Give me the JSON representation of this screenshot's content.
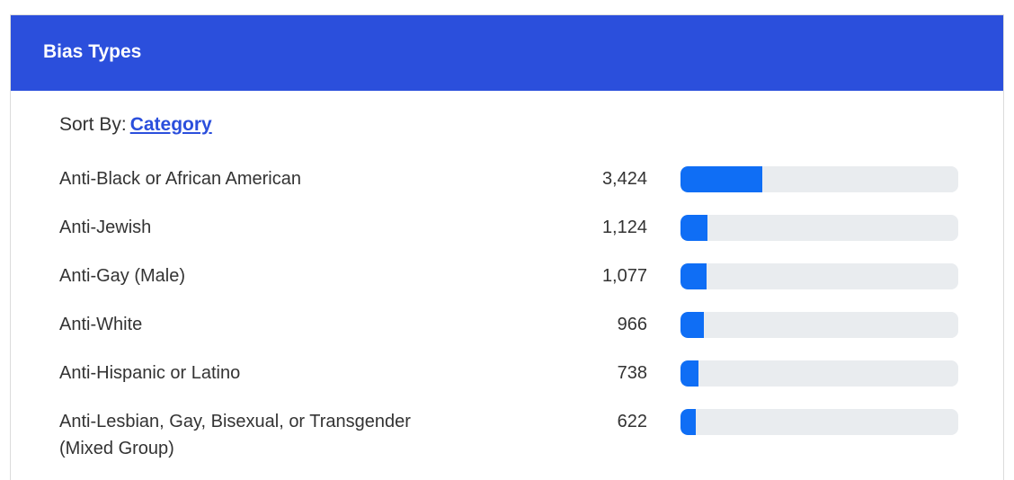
{
  "header": {
    "title": "Bias Types"
  },
  "sort": {
    "label": "Sort By:",
    "value": "Category"
  },
  "chart_data": {
    "type": "bar",
    "orientation": "horizontal",
    "categories": [
      "Anti-Black or African American",
      "Anti-Jewish",
      "Anti-Gay (Male)",
      "Anti-White",
      "Anti-Hispanic or Latino",
      "Anti-Lesbian, Gay, Bisexual, or Transgender (Mixed Group)"
    ],
    "values": [
      3424,
      1124,
      1077,
      966,
      738,
      622
    ],
    "value_labels": [
      "3,424",
      "1,124",
      "1,077",
      "966",
      "738",
      "622"
    ],
    "color": "#0f6ef5",
    "track_color": "#e9ecef",
    "xlim": [
      0,
      11627
    ]
  }
}
